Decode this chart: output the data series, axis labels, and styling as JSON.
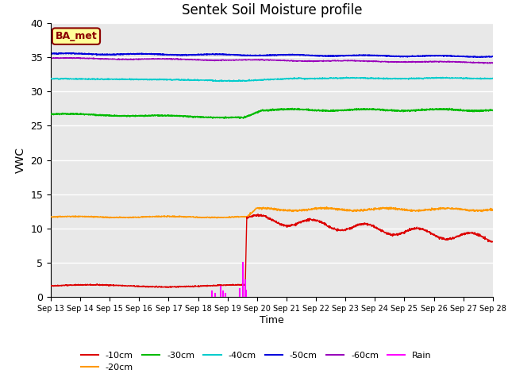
{
  "title": "Sentek Soil Moisture profile",
  "xlabel": "Time",
  "ylabel": "VWC",
  "annotation": "BA_met",
  "ylim": [
    0,
    40
  ],
  "background_color": "#e8e8e8",
  "fig_background": "#ffffff",
  "xtick_labels": [
    "Sep 13",
    "Sep 14",
    "Sep 15",
    "Sep 16",
    "Sep 17",
    "Sep 18",
    "Sep 19",
    "Sep 20",
    "Sep 21",
    "Sep 22",
    "Sep 23",
    "Sep 24",
    "Sep 25",
    "Sep 26",
    "Sep 27",
    "Sep 28"
  ],
  "ytick_labels": [
    0,
    5,
    10,
    15,
    20,
    25,
    30,
    35,
    40
  ],
  "series_10cm_color": "#dd0000",
  "series_20cm_color": "#ff9900",
  "series_30cm_color": "#00bb00",
  "series_40cm_color": "#00cccc",
  "series_50cm_color": "#0000dd",
  "series_60cm_color": "#9900bb",
  "rain_color": "#ff00ff",
  "grid_color": "#ffffff",
  "annotation_facecolor": "#ffff99",
  "annotation_edgecolor": "#8b0000",
  "annotation_textcolor": "#8b0000"
}
